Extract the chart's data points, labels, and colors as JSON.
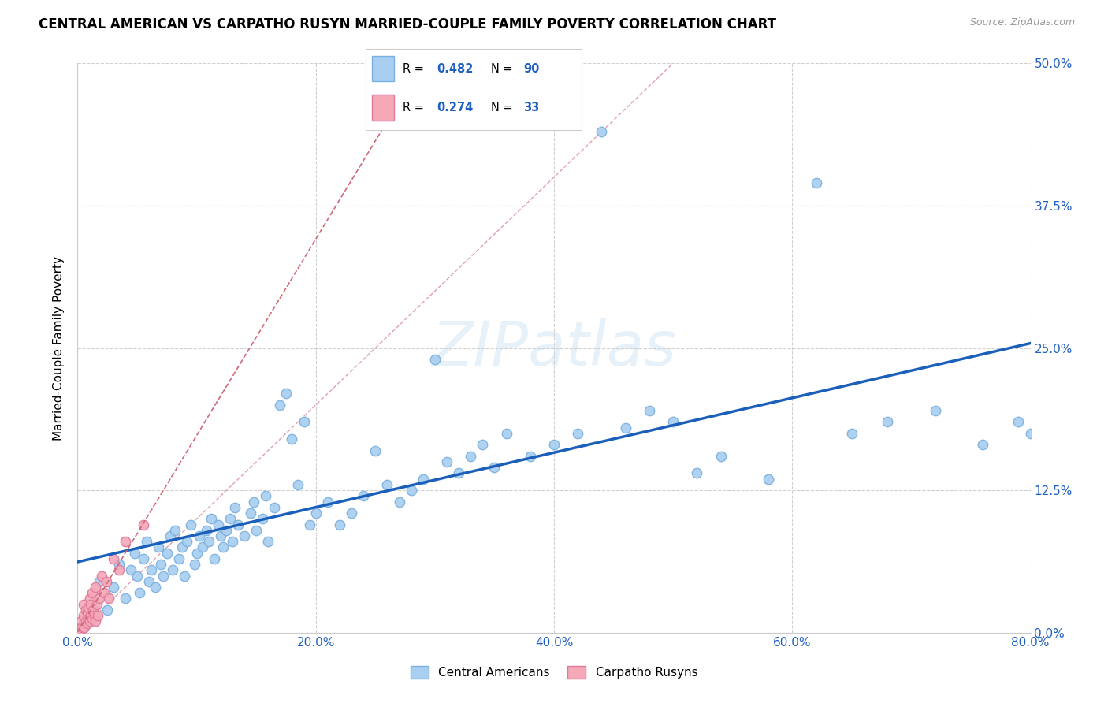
{
  "title": "CENTRAL AMERICAN VS CARPATHO RUSYN MARRIED-COUPLE FAMILY POVERTY CORRELATION CHART",
  "source": "Source: ZipAtlas.com",
  "ylabel": "Married-Couple Family Poverty",
  "xlim": [
    0,
    0.8
  ],
  "ylim": [
    0,
    0.5
  ],
  "ytick_vals": [
    0.0,
    0.125,
    0.25,
    0.375,
    0.5
  ],
  "xtick_vals": [
    0.0,
    0.2,
    0.4,
    0.6,
    0.8
  ],
  "grid_color": "#d0d0d0",
  "watermark": "ZIPatlas",
  "blue_color": "#a8cef0",
  "blue_edge": "#7ab0e0",
  "pink_color": "#f4a8b8",
  "pink_edge": "#e07898",
  "line_blue": "#1a5fba",
  "line_pink_color": "#d06878",
  "R_blue": "0.482",
  "N_blue": "90",
  "R_pink": "0.274",
  "N_pink": "33",
  "label_color": "#2060c0",
  "legend_bottom_labels": [
    "Central Americans",
    "Carpatho Rusyns"
  ],
  "blue_x": [
    0.018,
    0.025,
    0.03,
    0.035,
    0.04,
    0.045,
    0.048,
    0.05,
    0.052,
    0.055,
    0.058,
    0.06,
    0.062,
    0.065,
    0.068,
    0.07,
    0.072,
    0.075,
    0.078,
    0.08,
    0.082,
    0.085,
    0.088,
    0.09,
    0.092,
    0.095,
    0.098,
    0.1,
    0.102,
    0.105,
    0.108,
    0.11,
    0.112,
    0.115,
    0.118,
    0.12,
    0.122,
    0.125,
    0.128,
    0.13,
    0.132,
    0.135,
    0.14,
    0.145,
    0.148,
    0.15,
    0.155,
    0.158,
    0.16,
    0.165,
    0.17,
    0.175,
    0.18,
    0.185,
    0.19,
    0.195,
    0.2,
    0.21,
    0.22,
    0.23,
    0.24,
    0.25,
    0.26,
    0.27,
    0.28,
    0.29,
    0.3,
    0.31,
    0.32,
    0.33,
    0.34,
    0.35,
    0.36,
    0.38,
    0.4,
    0.42,
    0.44,
    0.46,
    0.48,
    0.5,
    0.52,
    0.54,
    0.58,
    0.62,
    0.65,
    0.68,
    0.72,
    0.76,
    0.79,
    0.8
  ],
  "blue_y": [
    0.045,
    0.02,
    0.04,
    0.06,
    0.03,
    0.055,
    0.07,
    0.05,
    0.035,
    0.065,
    0.08,
    0.045,
    0.055,
    0.04,
    0.075,
    0.06,
    0.05,
    0.07,
    0.085,
    0.055,
    0.09,
    0.065,
    0.075,
    0.05,
    0.08,
    0.095,
    0.06,
    0.07,
    0.085,
    0.075,
    0.09,
    0.08,
    0.1,
    0.065,
    0.095,
    0.085,
    0.075,
    0.09,
    0.1,
    0.08,
    0.11,
    0.095,
    0.085,
    0.105,
    0.115,
    0.09,
    0.1,
    0.12,
    0.08,
    0.11,
    0.2,
    0.21,
    0.17,
    0.13,
    0.185,
    0.095,
    0.105,
    0.115,
    0.095,
    0.105,
    0.12,
    0.16,
    0.13,
    0.115,
    0.125,
    0.135,
    0.24,
    0.15,
    0.14,
    0.155,
    0.165,
    0.145,
    0.175,
    0.155,
    0.165,
    0.175,
    0.44,
    0.18,
    0.195,
    0.185,
    0.14,
    0.155,
    0.135,
    0.395,
    0.175,
    0.185,
    0.195,
    0.165,
    0.185,
    0.175
  ],
  "pink_x": [
    0.002,
    0.003,
    0.004,
    0.005,
    0.005,
    0.006,
    0.007,
    0.007,
    0.008,
    0.008,
    0.009,
    0.009,
    0.01,
    0.01,
    0.011,
    0.011,
    0.012,
    0.012,
    0.013,
    0.014,
    0.015,
    0.015,
    0.016,
    0.017,
    0.018,
    0.02,
    0.022,
    0.024,
    0.026,
    0.03,
    0.035,
    0.04,
    0.055
  ],
  "pink_y": [
    0.0,
    0.01,
    0.005,
    0.015,
    0.025,
    0.005,
    0.01,
    0.02,
    0.008,
    0.018,
    0.012,
    0.022,
    0.01,
    0.03,
    0.015,
    0.025,
    0.012,
    0.035,
    0.02,
    0.015,
    0.01,
    0.04,
    0.025,
    0.015,
    0.03,
    0.05,
    0.035,
    0.045,
    0.03,
    0.065,
    0.055,
    0.08,
    0.095
  ],
  "marker_size": 80
}
